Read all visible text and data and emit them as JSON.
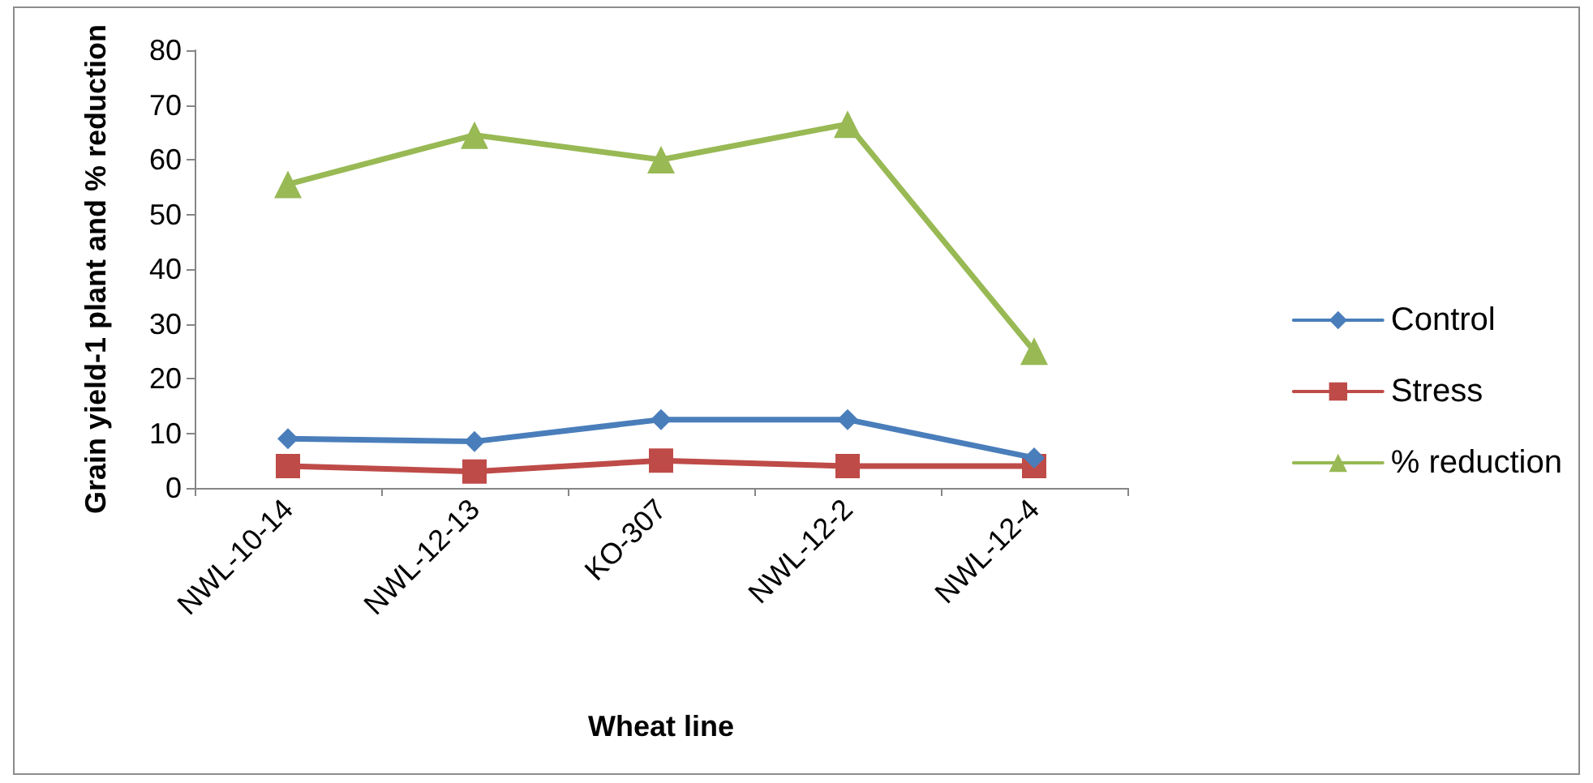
{
  "chart_data": {
    "type": "line",
    "xlabel": "Wheat line",
    "ylabel": "Grain yield-1 plant and % reduction",
    "categories": [
      "NWL-10-14",
      "NWL-12-13",
      "KO-307",
      "NWL-12-2",
      "NWL-12-4"
    ],
    "series": [
      {
        "name": "Control",
        "color": "#4a7ebb",
        "marker": "diamond",
        "values": [
          9,
          8.5,
          12.5,
          12.5,
          5.5
        ]
      },
      {
        "name": "Stress",
        "color": "#be4b48",
        "marker": "square",
        "values": [
          4,
          3,
          5,
          4,
          4
        ]
      },
      {
        "name": "% reduction",
        "color": "#98b954",
        "marker": "triangle",
        "values": [
          55.5,
          64.5,
          60,
          66.5,
          25
        ]
      }
    ],
    "ylim": [
      0,
      80
    ],
    "yticks": [
      0,
      10,
      20,
      30,
      40,
      50,
      60,
      70,
      80
    ],
    "grid": false,
    "legend": "right"
  }
}
